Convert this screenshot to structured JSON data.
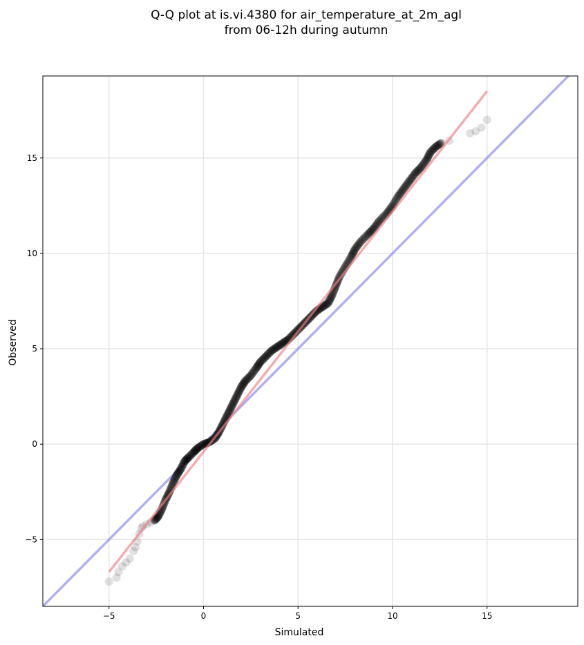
{
  "chart_data": {
    "type": "scatter",
    "title_line1": "Q-Q plot at is.vi.4380 for air_temperature_at_2m_agl",
    "title_line2": "from 06-12h during autumn",
    "xlabel": "Simulated",
    "ylabel": "Observed",
    "xlim": [
      -8.5,
      19.8
    ],
    "ylim": [
      -8.5,
      19.3
    ],
    "xticks": [
      -5,
      0,
      5,
      10,
      15
    ],
    "yticks": [
      -5,
      0,
      5,
      10,
      15
    ],
    "xtick_labels": [
      "−5",
      "0",
      "5",
      "10",
      "15"
    ],
    "ytick_labels": [
      "−5",
      "0",
      "5",
      "10",
      "15"
    ],
    "grid": true,
    "identity_line": {
      "color": "#7b7bea"
    },
    "fit_line": {
      "x": [
        -5,
        15
      ],
      "y": [
        -6.7,
        18.5
      ],
      "color": "#f08080"
    },
    "points_color": "#000000",
    "points": {
      "x": [
        -5.0,
        -4.6,
        -4.5,
        -4.3,
        -4.1,
        -3.9,
        -3.7,
        -3.6,
        -3.5,
        -3.4,
        -3.3,
        -3.2,
        -3.0,
        -2.8,
        -2.6,
        -2.4,
        -2.2,
        -2.0,
        -1.8,
        -1.6,
        -1.4,
        -1.2,
        -1.0,
        -0.8,
        -0.5,
        -0.3,
        0.0,
        0.3,
        0.6,
        0.8,
        1.0,
        1.2,
        1.4,
        1.6,
        1.8,
        2.0,
        2.2,
        2.5,
        2.8,
        3.0,
        3.3,
        3.6,
        3.9,
        4.2,
        4.5,
        4.8,
        5.1,
        5.4,
        5.7,
        6.0,
        6.3,
        6.6,
        6.8,
        7.0,
        7.2,
        7.5,
        7.8,
        8.0,
        8.3,
        8.7,
        9.0,
        9.3,
        9.7,
        10.0,
        10.3,
        10.6,
        10.9,
        11.2,
        11.5,
        11.8,
        12.0,
        12.3,
        12.6,
        13.0,
        14.1,
        14.4,
        14.7,
        15.0
      ],
      "y": [
        -7.2,
        -7.0,
        -6.7,
        -6.4,
        -6.2,
        -6.0,
        -5.6,
        -5.4,
        -5.1,
        -4.7,
        -4.4,
        -4.3,
        -4.2,
        -4.1,
        -4.0,
        -3.8,
        -3.4,
        -2.9,
        -2.5,
        -2.0,
        -1.6,
        -1.3,
        -0.9,
        -0.7,
        -0.4,
        -0.2,
        0.0,
        0.1,
        0.3,
        0.6,
        1.0,
        1.4,
        1.8,
        2.2,
        2.6,
        3.0,
        3.3,
        3.6,
        4.0,
        4.3,
        4.6,
        4.9,
        5.1,
        5.3,
        5.5,
        5.8,
        6.1,
        6.4,
        6.7,
        7.0,
        7.2,
        7.4,
        7.8,
        8.3,
        8.8,
        9.3,
        9.8,
        10.2,
        10.6,
        11.0,
        11.3,
        11.7,
        12.1,
        12.5,
        13.0,
        13.4,
        13.8,
        14.2,
        14.5,
        14.9,
        15.3,
        15.6,
        15.8,
        15.9,
        16.3,
        16.4,
        16.6,
        17.0
      ]
    }
  }
}
